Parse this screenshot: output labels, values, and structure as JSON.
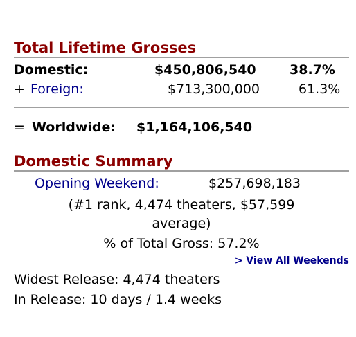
{
  "lifetime": {
    "title": "Total Lifetime Grosses",
    "domestic": {
      "label": "Domestic:",
      "amount": "$450,806,540",
      "pct": "38.7%"
    },
    "foreign": {
      "prefix": "+ ",
      "label": "Foreign:",
      "amount": "$713,300,000",
      "pct": "61.3%"
    },
    "worldwide": {
      "prefix": "= ",
      "label": "Worldwide:",
      "amount": "$1,164,106,540"
    }
  },
  "summary": {
    "title": "Domestic Summary",
    "opening_label": "Opening Weekend:",
    "opening_amount": "$257,698,183",
    "rank_line1": "(#1 rank, 4,474 theaters, $57,599",
    "rank_line2": "average)",
    "pct_total": "% of Total Gross: 57.2%",
    "view_all": "> View All Weekends",
    "widest_release": "Widest Release: 4,474 theaters",
    "in_release": "In Release: 10 days / 1.4 weeks"
  }
}
